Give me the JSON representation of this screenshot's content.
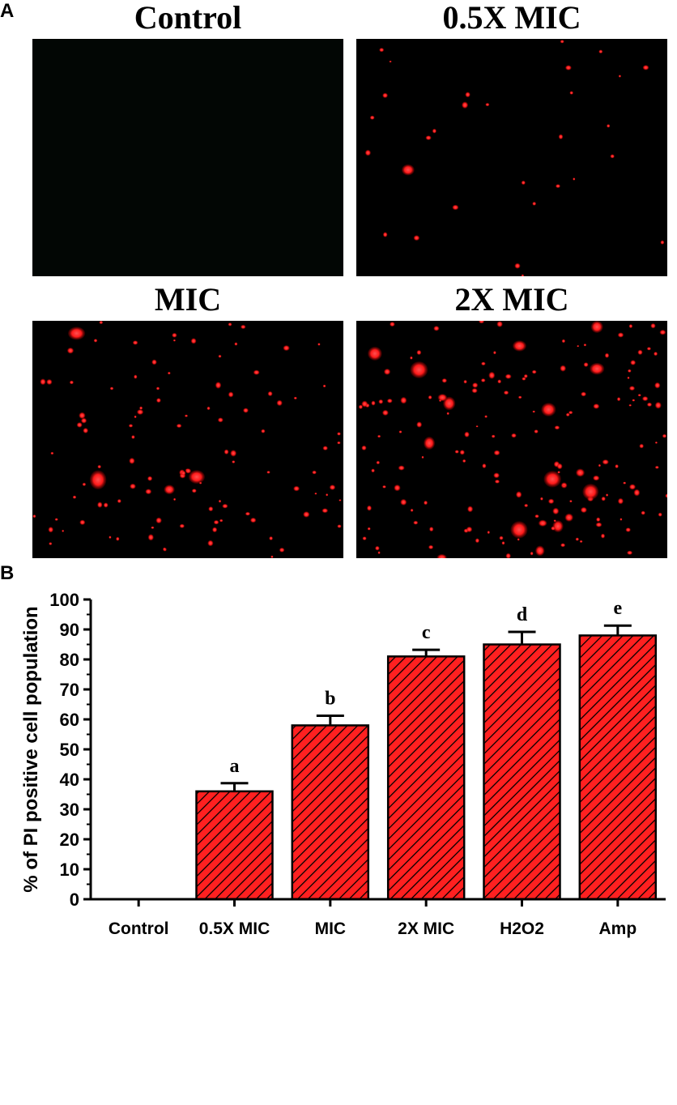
{
  "panels": {
    "a_label": "A",
    "b_label": "B"
  },
  "micrographs": [
    {
      "title": "Control",
      "background": "#020604",
      "dot_color": "#ff1a1a",
      "spots": 0
    },
    {
      "title": "0.5X MIC",
      "background": "#000000",
      "dot_color": "#ff1a1a",
      "spots": 30
    },
    {
      "title": "MIC",
      "background": "#000000",
      "dot_color": "#ff1a1a",
      "spots": 110
    },
    {
      "title": "2X MIC",
      "background": "#000000",
      "dot_color": "#ff1a1a",
      "spots": 170
    }
  ],
  "chart_data": {
    "type": "bar",
    "categories": [
      "Control",
      "0.5X MIC",
      "MIC",
      "2X MIC",
      "H2O2",
      "Amp"
    ],
    "values": [
      0,
      36,
      58,
      81,
      85,
      88
    ],
    "errors": [
      0,
      2.7,
      3.2,
      2.2,
      4.2,
      3.3
    ],
    "annotations": [
      "",
      "a",
      "b",
      "c",
      "d",
      "e"
    ],
    "ylabel": "% of PI positive cell population",
    "xlabel": "",
    "ylim": [
      0,
      100
    ],
    "yticks": [
      0,
      10,
      20,
      30,
      40,
      50,
      60,
      70,
      80,
      90,
      100
    ],
    "bar_color": "#ff2020",
    "hatch_color": "#000000",
    "grid": false
  }
}
